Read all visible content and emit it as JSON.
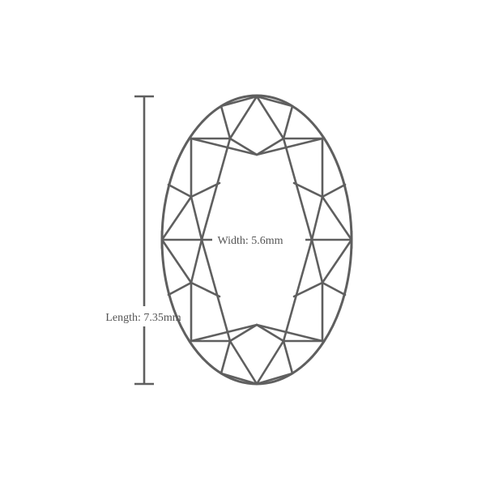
{
  "diagram": {
    "shape": "oval-cut-gemstone",
    "width_label": "Width: 5.6mm",
    "length_label": "Length: 7.35mm",
    "colors": {
      "stroke": "#5f5f5f",
      "text": "#555555",
      "background": "#ffffff"
    }
  }
}
